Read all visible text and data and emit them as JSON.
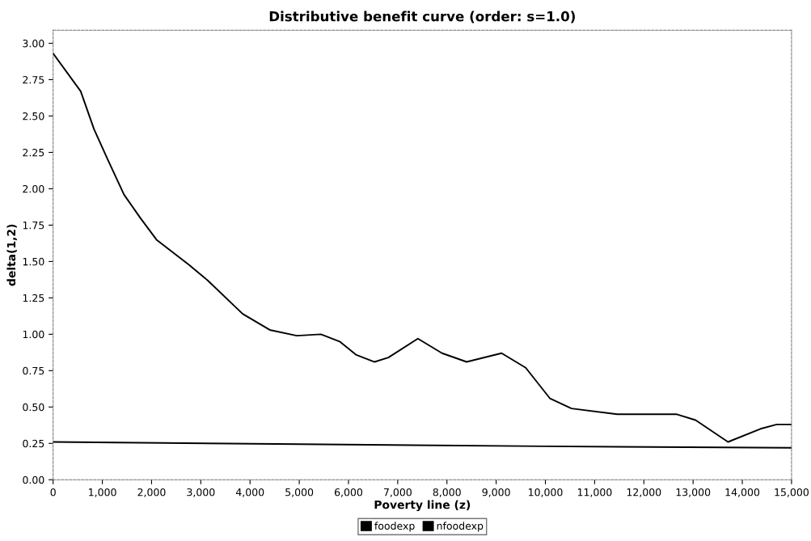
{
  "chart_data": {
    "type": "line",
    "title": "Distributive benefit curve (order: s=1.0)",
    "xlabel": "Poverty line (z)",
    "ylabel": "delta(1,2)",
    "xlim": [
      0,
      15000
    ],
    "ylim": [
      0,
      3.09
    ],
    "xticks": [
      {
        "value": 0,
        "label": "0"
      },
      {
        "value": 1000,
        "label": "1,000"
      },
      {
        "value": 2000,
        "label": "2,000"
      },
      {
        "value": 3000,
        "label": "3,000"
      },
      {
        "value": 4000,
        "label": "4,000"
      },
      {
        "value": 5000,
        "label": "5,000"
      },
      {
        "value": 6000,
        "label": "6,000"
      },
      {
        "value": 7000,
        "label": "7,000"
      },
      {
        "value": 8000,
        "label": "8,000"
      },
      {
        "value": 9000,
        "label": "9,000"
      },
      {
        "value": 10000,
        "label": "10,000"
      },
      {
        "value": 11000,
        "label": "11,000"
      },
      {
        "value": 12000,
        "label": "12,000"
      },
      {
        "value": 13000,
        "label": "13,000"
      },
      {
        "value": 14000,
        "label": "14,000"
      },
      {
        "value": 15000,
        "label": "15,000"
      }
    ],
    "yticks": [
      {
        "value": 0,
        "label": "0.00"
      },
      {
        "value": 0.25,
        "label": "0.25"
      },
      {
        "value": 0.5,
        "label": "0.50"
      },
      {
        "value": 0.75,
        "label": "0.75"
      },
      {
        "value": 1,
        "label": "1.00"
      },
      {
        "value": 1.25,
        "label": "1.25"
      },
      {
        "value": 1.5,
        "label": "1.50"
      },
      {
        "value": 1.75,
        "label": "1.75"
      },
      {
        "value": 2,
        "label": "2.00"
      },
      {
        "value": 2.25,
        "label": "2.25"
      },
      {
        "value": 2.5,
        "label": "2.50"
      },
      {
        "value": 2.75,
        "label": "2.75"
      },
      {
        "value": 3,
        "label": "3.00"
      }
    ],
    "grid": false,
    "legend": "bottom",
    "marker": "none",
    "line_style": "solid",
    "series": [
      {
        "name": "foodexp",
        "color": "#000000",
        "x": [
          0,
          560,
          830,
          1110,
          1440,
          1770,
          2100,
          2750,
          3140,
          3850,
          4400,
          4950,
          5440,
          5820,
          6150,
          6530,
          6810,
          7410,
          7900,
          8400,
          9110,
          9600,
          10090,
          10530,
          11460,
          12670,
          13050,
          13710,
          14370,
          14700,
          15000
        ],
        "values": [
          2.93,
          2.67,
          2.41,
          2.2,
          1.96,
          1.8,
          1.65,
          1.48,
          1.37,
          1.14,
          1.03,
          0.99,
          1.0,
          0.95,
          0.86,
          0.81,
          0.84,
          0.97,
          0.87,
          0.81,
          0.87,
          0.77,
          0.56,
          0.49,
          0.45,
          0.45,
          0.41,
          0.26,
          0.35,
          0.38,
          0.38
        ]
      },
      {
        "name": "nfoodexp",
        "color": "#000000",
        "x": [
          0,
          5000,
          10000,
          15000
        ],
        "values": [
          0.26,
          0.245,
          0.23,
          0.22
        ]
      }
    ]
  }
}
